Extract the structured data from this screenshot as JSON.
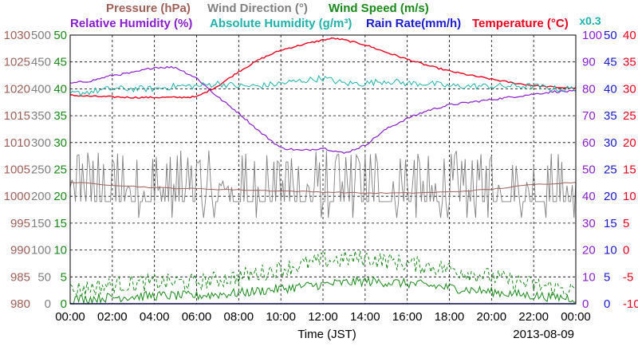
{
  "chart_data": {
    "type": "line",
    "date_label": "2013-08-09",
    "xlabel": "Time (JST)",
    "x_ticks": [
      "00:00",
      "02:00",
      "04:00",
      "06:00",
      "08:00",
      "10:00",
      "12:00",
      "14:00",
      "16:00",
      "18:00",
      "20:00",
      "22:00",
      "00:00"
    ],
    "x_range_hours": [
      0,
      24
    ],
    "grid": true,
    "legend_row1": [
      {
        "text": "Pressure (hPa)",
        "color": "#a0605a"
      },
      {
        "text": "Wind Direction (°)",
        "color": "#808080"
      },
      {
        "text": "Wind Speed (m/s)",
        "color": "#1a8a1a"
      }
    ],
    "legend_row2": [
      {
        "text": "Relative Humidity (%)",
        "color": "#8a1ecf"
      },
      {
        "text": "Absolute Humidity (g/m³)",
        "color": "#20b2aa"
      },
      {
        "text": "Rain Rate(mm/h)",
        "color": "#1a1acf"
      },
      {
        "text": "Temperature (°C)",
        "color": "#e8001c"
      }
    ],
    "abs_humidity_scale_label": "x0.3",
    "axes": {
      "pressure": {
        "color": "#a0605a",
        "ticks": [
          "1030",
          "1025",
          "1020",
          "1015",
          "1010",
          "1005",
          "1000",
          "995",
          "990",
          "985",
          "980"
        ],
        "range": [
          980,
          1030
        ]
      },
      "wind_direction": {
        "color": "#808080",
        "ticks": [
          "500",
          "450",
          "400",
          "350",
          "300",
          "250",
          "200",
          "150",
          "100",
          "50",
          "0"
        ],
        "range": [
          0,
          500
        ]
      },
      "wind_speed": {
        "color": "#1a8a1a",
        "ticks": [
          "50",
          "45",
          "40",
          "35",
          "30",
          "25",
          "20",
          "15",
          "10",
          "5",
          "0"
        ],
        "range": [
          0,
          50
        ]
      },
      "relative_humidity": {
        "color": "#8a1ecf",
        "ticks": [
          "100",
          "90",
          "80",
          "70",
          "60",
          "50",
          "40",
          "30",
          "20",
          "10",
          "0"
        ],
        "range": [
          0,
          100
        ]
      },
      "rain_rate": {
        "color": "#1a1acf",
        "ticks": [
          "50",
          "45",
          "40",
          "35",
          "30",
          "25",
          "20",
          "15",
          "10",
          "5",
          "0"
        ],
        "range": [
          0,
          50
        ]
      },
      "temperature": {
        "color": "#e8001c",
        "ticks": [
          "40",
          "35",
          "30",
          "25",
          "20",
          "15",
          "10",
          "5",
          "0",
          "-5",
          "-10"
        ],
        "range": [
          -10,
          40
        ]
      }
    },
    "series": [
      {
        "name": "Temperature (°C)",
        "color": "#e8001c",
        "axis": "temperature",
        "x": [
          0,
          1,
          2,
          3,
          4,
          5,
          6,
          7,
          8,
          9,
          10,
          11,
          12,
          12.5,
          13,
          14,
          15,
          16,
          17,
          18,
          19,
          20,
          21,
          22,
          23,
          24
        ],
        "y": [
          28.8,
          28.6,
          28.5,
          28.4,
          28.4,
          28.4,
          28.5,
          30.5,
          33.2,
          35.5,
          37.2,
          38.2,
          39.1,
          39.4,
          39.1,
          38.2,
          36.8,
          35.5,
          34.3,
          33.3,
          32.5,
          31.8,
          31.1,
          30.6,
          30.3,
          30.1
        ]
      },
      {
        "name": "Relative Humidity (%)",
        "color": "#8a1ecf",
        "axis": "relative_humidity",
        "x": [
          0,
          1,
          2,
          3,
          4,
          5,
          6,
          7,
          8,
          9,
          10,
          11,
          12,
          13,
          14,
          15,
          16,
          17,
          18,
          19,
          20,
          21,
          22,
          23,
          24
        ],
        "y": [
          82,
          83,
          85,
          86,
          88,
          88,
          84,
          77,
          71,
          64,
          58,
          57,
          58,
          56,
          59,
          65,
          69,
          72,
          74,
          75,
          76,
          77,
          78,
          79,
          79
        ]
      },
      {
        "name": "Absolute Humidity (g/m³) x0.3",
        "color": "#20b2aa",
        "axis": "relative_humidity",
        "x": [
          0,
          1,
          2,
          3,
          4,
          5,
          6,
          7,
          8,
          9,
          10,
          11,
          12,
          13,
          14,
          15,
          16,
          17,
          18,
          19,
          20,
          21,
          22,
          23,
          24
        ],
        "y": [
          78,
          79,
          80,
          80,
          80,
          81,
          81,
          82,
          81,
          81,
          82,
          83,
          84,
          82,
          82,
          83,
          82,
          82,
          81,
          81,
          81,
          81,
          81,
          80,
          80
        ]
      },
      {
        "name": "Pressure (hPa)",
        "color": "#a0605a",
        "axis": "pressure",
        "x": [
          0,
          2,
          4,
          6,
          8,
          10,
          12,
          14,
          16,
          18,
          20,
          22,
          24
        ],
        "y": [
          1002.6,
          1002.1,
          1001.6,
          1001.4,
          1001.2,
          1001.0,
          1000.8,
          1000.6,
          1000.6,
          1000.8,
          1001.3,
          1002.2,
          1002.6
        ]
      },
      {
        "name": "Wind Direction (°)",
        "color": "#808080",
        "axis": "wind_direction",
        "baseline": 190,
        "spike_low": 160,
        "spike_high": 270
      },
      {
        "name": "Wind Speed mean (m/s)",
        "color": "#1a8a1a",
        "axis": "wind_speed",
        "style": "solid",
        "x": [
          0,
          2,
          4,
          6,
          8,
          10,
          12,
          14,
          16,
          18,
          20,
          22,
          24
        ],
        "y": [
          0.8,
          1.2,
          1.5,
          1.5,
          2.0,
          2.8,
          3.6,
          4.2,
          3.8,
          3.0,
          2.2,
          1.5,
          1.0
        ]
      },
      {
        "name": "Wind Speed gust (m/s)",
        "color": "#1a8a1a",
        "axis": "wind_speed",
        "style": "dashed",
        "x": [
          0,
          2,
          4,
          6,
          8,
          10,
          12,
          14,
          16,
          18,
          20,
          22,
          24
        ],
        "y": [
          2.5,
          3.5,
          4.0,
          4.0,
          5.0,
          6.5,
          8.0,
          8.5,
          7.5,
          6.5,
          5.0,
          3.5,
          2.5
        ]
      },
      {
        "name": "Rain Rate(mm/h)",
        "color": "#1a1acf",
        "axis": "rain_rate",
        "x": [
          0,
          24
        ],
        "y": [
          0,
          0
        ]
      }
    ]
  }
}
